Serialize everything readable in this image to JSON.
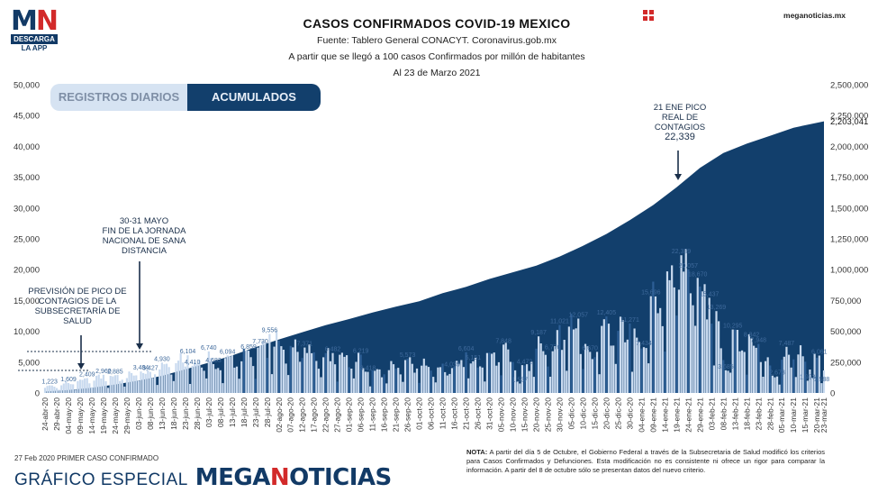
{
  "logo": {
    "letters_a": "M",
    "letters_b": "N",
    "descarga": "DESCARGA",
    "app": "LA APP"
  },
  "header": {
    "title": "CASOS CONFIRMADOS COVID-19 MEXICO",
    "line1": "Fuente: Tablero General CONACYT. Coronavirus.gob.mx",
    "line2": "A partir que se llegó a 100 casos Confirmados por millón de habitantes",
    "line3": "Al 23 de Marzo 2021",
    "site": "meganoticias.mx"
  },
  "tabs": {
    "daily": "REGISTROS DIARIOS",
    "cumulative": "ACUMULADOS"
  },
  "annotations": {
    "jan_peak": [
      "21 ENE PICO",
      "REAL DE",
      "CONTAGIOS",
      "22,339"
    ],
    "may": [
      "30-31 MAYO",
      "FIN DE LA JORNADA",
      "NACIONAL DE SANA",
      "DISTANCIA"
    ],
    "prevision": [
      "PREVISIÓN DE PICO DE",
      "CONTAGIOS DE LA",
      "SUBSECRETARÍA DE",
      "SALUD"
    ]
  },
  "footer": {
    "first_case": "27 Feb 2020 PRIMER CASO CONFIRMADO",
    "grafico": "GRÁFICO ESPECIAL",
    "brand_a": "MEGA",
    "brand_b": "N",
    "brand_c": "OTICIAS",
    "note_label": "NOTA:",
    "note": "A partir del día 5 de Octubre, el Gobierno Federal a través de la Subsecretaria de Salud modificó los criterios para Casos Confirmados y Defunciones. Esta modificación no es consistente ni ofrece un rigor para comparar la información. A partir del 8 de octubre sólo se presentan datos del nuevo criterio."
  },
  "colors": {
    "navy": "#123f6c",
    "light_bar": "#c9daef",
    "dark_bar": "#2d5f96",
    "red": "#d22a2a"
  },
  "chart_data": {
    "type": "area",
    "title": "CASOS CONFIRMADOS COVID-19 MEXICO",
    "left_axis": {
      "ylim": [
        0,
        50000
      ],
      "ticks": [
        "0",
        "5,000",
        "10,000",
        "15,000",
        "20,000",
        "25,000",
        "30,000",
        "35,000",
        "40,000",
        "45,000",
        "50,000"
      ]
    },
    "right_axis": {
      "ylim": [
        0,
        2500000
      ],
      "ticks": [
        "0",
        "250,000",
        "500,000",
        "750,000",
        "1,000,000",
        "1,250,000",
        "1,500,000",
        "1,750,000",
        "2,000,000",
        "2,250,000",
        "2,500,000"
      ]
    },
    "x_range": [
      "2020-04-24",
      "2021-03-23"
    ],
    "x_ticks": [
      "24-abr-20",
      "29-abr-20",
      "04-may-20",
      "09-may-20",
      "14-may-20",
      "19-may-20",
      "24-may-20",
      "29-may-20",
      "03-jun-20",
      "08-jun-20",
      "13-jun-20",
      "18-jun-20",
      "23-jun-20",
      "28-jun-20",
      "03-jul-20",
      "08-jul-20",
      "13-jul-20",
      "18-jul-20",
      "23-jul-20",
      "28-jul-20",
      "02-ago-20",
      "07-ago-20",
      "12-ago-20",
      "17-ago-20",
      "22-ago-20",
      "27-ago-20",
      "01-sep-20",
      "06-sep-20",
      "11-sep-20",
      "16-sep-20",
      "21-sep-20",
      "26-sep-20",
      "01-oct-20",
      "06-oct-20",
      "11-oct-20",
      "16-oct-20",
      "21-oct-20",
      "26-oct-20",
      "31-oct-20",
      "05-nov-20",
      "10-nov-20",
      "15-nov-20",
      "20-nov-20",
      "25-nov-20",
      "30-nov-20",
      "05-dic-20",
      "10-dic-20",
      "15-dic-20",
      "20-dic-20",
      "25-dic-20",
      "30-dic-20",
      "04-ene-21",
      "09-ene-21",
      "14-ene-21",
      "19-ene-21",
      "24-ene-21",
      "29-ene-21",
      "03-feb-21",
      "08-feb-21",
      "13-feb-21",
      "18-feb-21",
      "23-feb-21",
      "28-feb-21",
      "05-mar-21",
      "10-mar-21",
      "15-mar-21",
      "20-mar-21",
      "23-mar-21"
    ],
    "series": [
      {
        "name": "ACUMULADOS",
        "axis": "right",
        "points": [
          [
            "2020-04-24",
            11600
          ],
          [
            "2020-05-04",
            23500
          ],
          [
            "2020-05-14",
            42600
          ],
          [
            "2020-05-24",
            68600
          ],
          [
            "2020-06-03",
            101200
          ],
          [
            "2020-06-13",
            139200
          ],
          [
            "2020-06-23",
            191400
          ],
          [
            "2020-07-03",
            245300
          ],
          [
            "2020-07-13",
            304400
          ],
          [
            "2020-07-23",
            370700
          ],
          [
            "2020-08-02",
            434200
          ],
          [
            "2020-08-12",
            492500
          ],
          [
            "2020-08-22",
            549700
          ],
          [
            "2020-09-01",
            599600
          ],
          [
            "2020-09-11",
            652400
          ],
          [
            "2020-09-21",
            700600
          ],
          [
            "2020-10-01",
            743200
          ],
          [
            "2020-10-11",
            809700
          ],
          [
            "2020-10-21",
            860700
          ],
          [
            "2020-10-31",
            924900
          ],
          [
            "2020-11-10",
            978500
          ],
          [
            "2020-11-20",
            1032700
          ],
          [
            "2020-11-30",
            1107000
          ],
          [
            "2020-12-10",
            1193300
          ],
          [
            "2020-12-20",
            1289300
          ],
          [
            "2020-12-30",
            1401100
          ],
          [
            "2021-01-09",
            1524000
          ],
          [
            "2021-01-19",
            1668400
          ],
          [
            "2021-01-29",
            1825500
          ],
          [
            "2021-02-08",
            1946800
          ],
          [
            "2021-02-18",
            2022000
          ],
          [
            "2021-02-28",
            2086000
          ],
          [
            "2021-03-10",
            2151000
          ],
          [
            "2021-03-23",
            2203041
          ]
        ]
      },
      {
        "name": "REGISTROS DIARIOS",
        "axis": "left",
        "labeled_points": [
          [
            "2020-04-26",
            1223
          ],
          [
            "2020-05-04",
            1609
          ],
          [
            "2020-05-12",
            2409
          ],
          [
            "2020-05-19",
            2960
          ],
          [
            "2020-05-24",
            2885
          ],
          [
            "2020-06-04",
            3484
          ],
          [
            "2020-06-08",
            3427
          ],
          [
            "2020-06-13",
            4930
          ],
          [
            "2020-06-24",
            6104
          ],
          [
            "2020-06-26",
            4410
          ],
          [
            "2020-07-03",
            6740
          ],
          [
            "2020-07-05",
            4683
          ],
          [
            "2020-07-11",
            6094
          ],
          [
            "2020-07-20",
            6859
          ],
          [
            "2020-07-29",
            9556
          ],
          [
            "2020-07-25",
            7730
          ],
          [
            "2020-08-13",
            7371
          ],
          [
            "2020-08-25",
            6482
          ],
          [
            "2020-09-06",
            6219
          ],
          [
            "2020-09-09",
            3418
          ],
          [
            "2020-09-26",
            5573
          ],
          [
            "2020-10-15",
            4039
          ],
          [
            "2020-10-21",
            6604
          ],
          [
            "2020-10-24",
            5151
          ],
          [
            "2020-11-06",
            7848
          ],
          [
            "2020-11-13",
            1537
          ],
          [
            "2020-11-15",
            4472
          ],
          [
            "2020-11-21",
            9187
          ],
          [
            "2020-11-27",
            6776
          ],
          [
            "2020-11-30",
            11021
          ],
          [
            "2020-12-08",
            12057
          ],
          [
            "2020-12-13",
            6670
          ],
          [
            "2020-12-20",
            12405
          ],
          [
            "2020-12-30",
            11271
          ],
          [
            "2021-01-05",
            7434
          ],
          [
            "2021-01-08",
            15696
          ],
          [
            "2021-01-21",
            22339
          ],
          [
            "2021-01-24",
            20057
          ],
          [
            "2021-01-28",
            18670
          ],
          [
            "2021-02-02",
            15437
          ],
          [
            "2021-02-05",
            13269
          ],
          [
            "2021-02-09",
            3685
          ],
          [
            "2021-02-12",
            10295
          ],
          [
            "2021-02-20",
            8842
          ],
          [
            "2021-02-23",
            7948
          ],
          [
            "2021-03-03",
            2673
          ],
          [
            "2021-03-07",
            7487
          ],
          [
            "2021-03-16",
            1993
          ],
          [
            "2021-03-21",
            6061
          ],
          [
            "2021-03-22",
            1588
          ]
        ]
      }
    ]
  }
}
